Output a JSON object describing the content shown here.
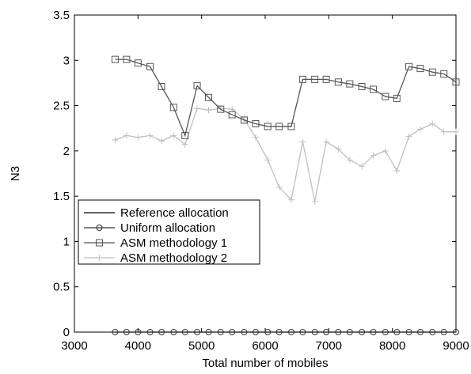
{
  "chart_data": {
    "type": "line",
    "xlabel": "Total number of mobiles",
    "ylabel": "N3",
    "xlim": [
      3000,
      9000
    ],
    "ylim": [
      0,
      3.5
    ],
    "xticks": [
      3000,
      4000,
      5000,
      6000,
      7000,
      8000,
      9000
    ],
    "yticks": [
      0,
      0.5,
      1,
      1.5,
      2,
      2.5,
      3,
      3.5
    ],
    "xtick_labels": [
      "3000",
      "4000",
      "5000",
      "6000",
      "7000",
      "8000",
      "9000"
    ],
    "ytick_labels": [
      "0",
      "0.5",
      "1",
      "1.5",
      "2",
      "2.5",
      "3",
      "3.5"
    ],
    "grid": false,
    "legend_position": "lower-left",
    "x": [
      3640,
      3820,
      4000,
      4190,
      4370,
      4560,
      4740,
      4930,
      5110,
      5300,
      5480,
      5670,
      5850,
      6040,
      6220,
      6410,
      6590,
      6780,
      6960,
      7150,
      7330,
      7520,
      7700,
      7890,
      8070,
      8260,
      8440,
      8630,
      8810,
      9000
    ],
    "series": [
      {
        "name": "Reference allocation",
        "color": "#000000",
        "marker": "none",
        "values": [
          0,
          0,
          0,
          0,
          0,
          0,
          0,
          0,
          0,
          0,
          0,
          0,
          0,
          0,
          0,
          0,
          0,
          0,
          0,
          0,
          0,
          0,
          0,
          0,
          0,
          0,
          0,
          0,
          0,
          0
        ]
      },
      {
        "name": "Uniform allocation",
        "color": "#333333",
        "marker": "circle",
        "values": [
          0,
          0,
          0,
          0,
          0,
          0,
          0,
          0,
          0,
          0,
          0,
          0,
          0,
          0,
          0,
          0,
          0,
          0,
          0,
          0,
          0,
          0,
          0,
          0,
          0,
          0,
          0,
          0,
          0,
          0
        ]
      },
      {
        "name": "ASM methodology 1",
        "color": "#555555",
        "marker": "square",
        "values": [
          3.01,
          3.01,
          2.97,
          2.93,
          2.71,
          2.48,
          2.17,
          2.72,
          2.59,
          2.46,
          2.4,
          2.34,
          2.3,
          2.27,
          2.27,
          2.27,
          2.79,
          2.79,
          2.79,
          2.76,
          2.74,
          2.71,
          2.68,
          2.6,
          2.58,
          2.93,
          2.91,
          2.87,
          2.85,
          2.76
        ]
      },
      {
        "name": "ASM methodology 2",
        "color": "#c0c0c0",
        "marker": "plus",
        "values": [
          2.12,
          2.17,
          2.15,
          2.17,
          2.11,
          2.17,
          2.07,
          2.47,
          2.45,
          2.47,
          2.46,
          2.35,
          2.15,
          1.9,
          1.6,
          1.46,
          2.1,
          1.44,
          2.1,
          2.02,
          1.9,
          1.83,
          1.95,
          2.0,
          1.78,
          2.16,
          2.24,
          2.3,
          2.21,
          2.21
        ]
      }
    ]
  }
}
